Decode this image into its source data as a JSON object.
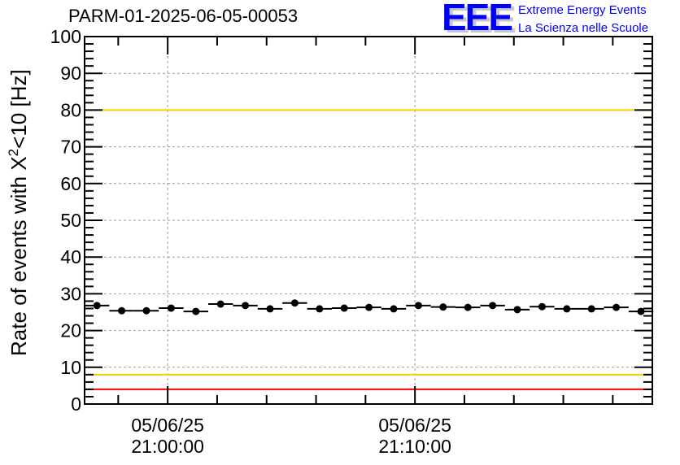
{
  "chart_data": {
    "type": "scatter",
    "title": "PARM-01-2025-06-05-00053",
    "ylabel": "Rate of events with X",
    "ylabel_sup": "2",
    "ylabel_suffix": "<10 [Hz]",
    "xlabel": "",
    "ylim": [
      0,
      100
    ],
    "yticks": [
      "0",
      "10",
      "20",
      "30",
      "40",
      "50",
      "60",
      "70",
      "80",
      "90",
      "100"
    ],
    "xlim_minutes_from_2100": [
      -3.36,
      19.6
    ],
    "xticks": [
      {
        "minute": 0,
        "date": "05/06/25",
        "time": "21:00:00"
      },
      {
        "minute": 10,
        "date": "05/06/25",
        "time": "21:10:00"
      }
    ],
    "grid": true,
    "bin_width_minutes": 1,
    "series": [
      {
        "name": "rate",
        "x_minutes_from_2100": [
          -2.86,
          -1.86,
          -0.86,
          0.14,
          1.14,
          2.14,
          3.14,
          4.14,
          5.14,
          6.14,
          7.14,
          8.14,
          9.14,
          10.14,
          11.14,
          12.14,
          13.14,
          14.14,
          15.14,
          16.14,
          17.14,
          18.14,
          19.14
        ],
        "values": [
          26.8,
          25.4,
          25.4,
          26.1,
          25.2,
          27.2,
          26.8,
          25.9,
          27.5,
          25.9,
          26.1,
          26.3,
          25.9,
          26.8,
          26.4,
          26.3,
          26.8,
          25.7,
          26.5,
          25.9,
          25.9,
          26.3,
          25.2
        ]
      }
    ],
    "reference_lines": [
      {
        "value": 100,
        "color": "#ff0000"
      },
      {
        "value": 80,
        "color": "#ffcc00"
      },
      {
        "value": 8,
        "color": "#ffcc00"
      },
      {
        "value": 4,
        "color": "#ff0000"
      }
    ]
  },
  "logo": {
    "text": "EEE",
    "color": "#0000ff",
    "line1": "Extreme Energy Events",
    "line2": "La Scienza nelle Scuole"
  }
}
